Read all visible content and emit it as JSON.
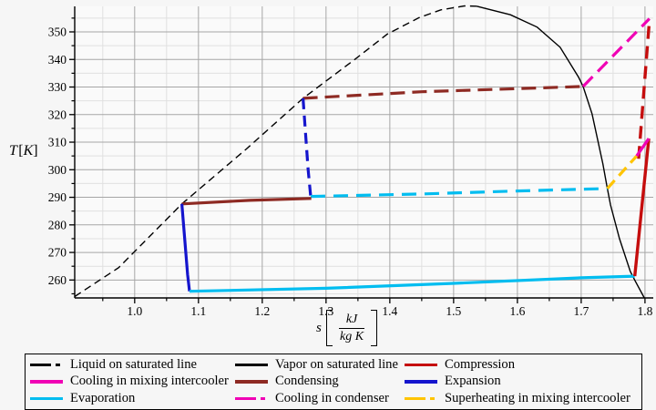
{
  "figure": {
    "background": "#f6f6f6",
    "plot_bg": "#fafafa",
    "grid_major_color": "#a6a6a6",
    "grid_minor_color": "#e0e0e0",
    "axis_color": "#000000"
  },
  "axes": {
    "y": {
      "label_var": "T",
      "label_unit": "K",
      "ticks": [
        {
          "value": 260,
          "label": "260"
        },
        {
          "value": 270,
          "label": "270"
        },
        {
          "value": 280,
          "label": "280"
        },
        {
          "value": 290,
          "label": "290"
        },
        {
          "value": 300,
          "label": "300"
        },
        {
          "value": 310,
          "label": "310"
        },
        {
          "value": 320,
          "label": "320"
        },
        {
          "value": 330,
          "label": "330"
        },
        {
          "value": 340,
          "label": "340"
        },
        {
          "value": 350,
          "label": "350"
        }
      ],
      "minor_start": 255,
      "minor_end": 355,
      "minor_step": 5
    },
    "x": {
      "label_var": "s",
      "label_numerator": "kJ",
      "label_denominator": "kg K",
      "ticks": [
        {
          "value": 1.0,
          "label": "1.0"
        },
        {
          "value": 1.1,
          "label": "1.1"
        },
        {
          "value": 1.2,
          "label": "1.2"
        },
        {
          "value": 1.3,
          "label": "1.3"
        },
        {
          "value": 1.4,
          "label": "1.4"
        },
        {
          "value": 1.5,
          "label": "1.5"
        },
        {
          "value": 1.6,
          "label": "1.6"
        },
        {
          "value": 1.7,
          "label": "1.7"
        },
        {
          "value": 1.8,
          "label": "1.8"
        }
      ],
      "minor_start": 0.95,
      "minor_end": 1.8,
      "minor_step": 0.05
    }
  },
  "chart_data": {
    "type": "line",
    "title": "",
    "xlabel": "s [kJ/(kg K)]",
    "ylabel": "T [K]",
    "xlim": [
      0.906,
      1.813
    ],
    "ylim": [
      253.5,
      359.25
    ],
    "grid": true,
    "legend_position": "bottom",
    "lines": [
      {
        "id": "liquid-saturated-line",
        "legend": "Liquid on saturated line",
        "color": "#000000",
        "dashed": true,
        "width": 1.4,
        "dash": "8 5",
        "points": [
          [
            0.906,
            254.0
          ],
          [
            0.975,
            264.5
          ],
          [
            1.074,
            287.6
          ],
          [
            1.175,
            307.5
          ],
          [
            1.264,
            325.9
          ],
          [
            1.345,
            340.0
          ],
          [
            1.396,
            349.2
          ],
          [
            1.446,
            355.2
          ],
          [
            1.48,
            358.0
          ],
          [
            1.517,
            359.4
          ],
          [
            1.536,
            359.3
          ]
        ]
      },
      {
        "id": "vapor-saturated-line",
        "legend": "Vapor on saturated line",
        "color": "#000000",
        "dashed": false,
        "width": 1.4,
        "points": [
          [
            1.536,
            359.3
          ],
          [
            1.589,
            356.2
          ],
          [
            1.631,
            351.7
          ],
          [
            1.667,
            344.4
          ],
          [
            1.696,
            333.5
          ],
          [
            1.703,
            330.2
          ],
          [
            1.717,
            320.3
          ],
          [
            1.734,
            302.1
          ],
          [
            1.741,
            293.2
          ],
          [
            1.746,
            287.2
          ],
          [
            1.76,
            275.0
          ],
          [
            1.777,
            263.1
          ],
          [
            1.785,
            259.5
          ],
          [
            1.799,
            253.5
          ]
        ]
      },
      {
        "id": "condensing-high-stage",
        "legend": "Condensing",
        "color": "#8e2a23",
        "dashed": true,
        "width": 3.2,
        "dash": "16 8",
        "points": [
          [
            1.264,
            325.9
          ],
          [
            1.45,
            328.3
          ],
          [
            1.6,
            329.4
          ],
          [
            1.703,
            330.2
          ]
        ]
      },
      {
        "id": "cooling-in-condenser",
        "legend": "Cooling in condenser",
        "color": "#f000b4",
        "dashed": true,
        "width": 3.2,
        "dash": "15 8",
        "points": [
          [
            1.703,
            330.2
          ],
          [
            1.807,
            354.8
          ]
        ]
      },
      {
        "id": "compression-high-stage",
        "legend": "Compression",
        "color": "#c50d0d",
        "dashed": true,
        "width": 3.4,
        "dash": "14 8",
        "points": [
          [
            1.79,
            304.0
          ],
          [
            1.807,
            354.3
          ]
        ]
      },
      {
        "id": "expansion-high-stage",
        "legend": "Expansion",
        "color": "#1515cd",
        "dashed": true,
        "width": 3.2,
        "dash": "12 7",
        "points": [
          [
            1.264,
            325.9
          ],
          [
            1.272,
            300.0
          ],
          [
            1.276,
            290.3
          ]
        ]
      },
      {
        "id": "evaporation-high-stage",
        "legend": "Evaporation",
        "color": "#00bdf0",
        "dashed": true,
        "width": 3.2,
        "dash": "16 9",
        "points": [
          [
            1.276,
            290.3
          ],
          [
            1.45,
            291.2
          ],
          [
            1.6,
            292.3
          ],
          [
            1.741,
            293.2
          ]
        ]
      },
      {
        "id": "superheating-in-mixing-intercooler",
        "legend": "Superheating in mixing intercooler",
        "color": "#ffc400",
        "dashed": true,
        "width": 3.2,
        "dash": "12 7",
        "points": [
          [
            1.741,
            293.2
          ],
          [
            1.787,
            305.0
          ]
        ]
      },
      {
        "id": "condensing-low-stage",
        "legend": "Condensing",
        "color": "#8e2a23",
        "dashed": false,
        "width": 3.2,
        "points": [
          [
            1.074,
            287.6
          ],
          [
            1.18,
            288.9
          ],
          [
            1.277,
            289.6
          ]
        ]
      },
      {
        "id": "expansion-low-stage",
        "legend": "Expansion",
        "color": "#1515cd",
        "dashed": false,
        "width": 3.2,
        "points": [
          [
            1.074,
            287.6
          ],
          [
            1.083,
            262.0
          ],
          [
            1.086,
            255.9
          ]
        ]
      },
      {
        "id": "evaporation-low-stage",
        "legend": "Evaporation",
        "color": "#00bdf0",
        "dashed": false,
        "width": 3.2,
        "points": [
          [
            1.086,
            255.9
          ],
          [
            1.3,
            257.0
          ],
          [
            1.5,
            258.8
          ],
          [
            1.7,
            260.8
          ],
          [
            1.784,
            261.4
          ]
        ]
      },
      {
        "id": "compression-low-stage",
        "legend": "Compression",
        "color": "#c50d0d",
        "dashed": false,
        "width": 3.4,
        "points": [
          [
            1.784,
            261.4
          ],
          [
            1.806,
            311.3
          ]
        ]
      },
      {
        "id": "cooling-in-mixing-intercooler",
        "legend": "Cooling in mixing intercooler",
        "color": "#f000b4",
        "dashed": false,
        "width": 3.2,
        "points": [
          [
            1.806,
            311.3
          ],
          [
            1.787,
            305.0
          ]
        ]
      }
    ]
  },
  "legend": {
    "items": [
      {
        "label": "Liquid on saturated line",
        "color": "#000000",
        "dashed": true,
        "thin": true
      },
      {
        "label": "Vapor on saturated line",
        "color": "#000000",
        "dashed": false,
        "thin": true
      },
      {
        "label": "Compression",
        "color": "#c50d0d",
        "dashed": false,
        "thin": false
      },
      {
        "label": "Cooling in mixing intercooler",
        "color": "#f000b4",
        "dashed": false,
        "thin": false
      },
      {
        "label": "Condensing",
        "color": "#8e2a23",
        "dashed": false,
        "thin": false
      },
      {
        "label": "Expansion",
        "color": "#1515cd",
        "dashed": false,
        "thin": false
      },
      {
        "label": "Evaporation",
        "color": "#00bdf0",
        "dashed": false,
        "thin": false
      },
      {
        "label": "Cooling in condenser",
        "color": "#f000b4",
        "dashed": true,
        "thin": false
      },
      {
        "label": "Superheating in mixing intercooler",
        "color": "#ffc400",
        "dashed": true,
        "thin": false
      }
    ]
  }
}
